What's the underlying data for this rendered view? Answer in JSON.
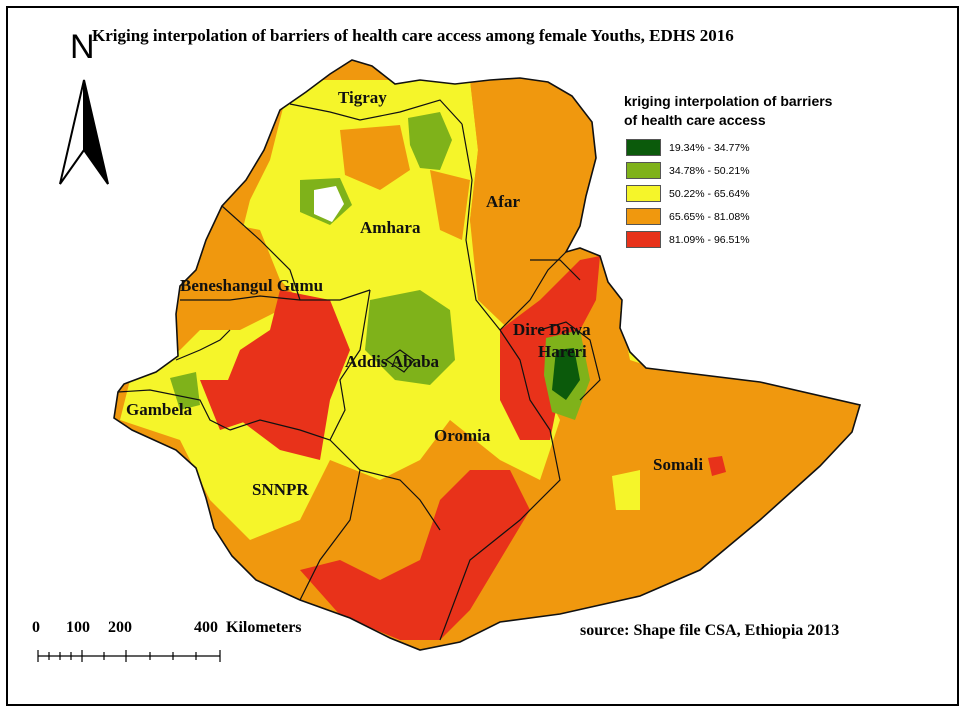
{
  "title": "Kriging interpolation of barriers of health care access among female Youths, EDHS 2016",
  "north_arrow": {
    "label": "N",
    "icon": "north-arrow-icon"
  },
  "legend": {
    "title_line1": "kriging interpolation of barriers",
    "title_line2": "of health care access",
    "classes": [
      {
        "label": "19.34% - 34.77%",
        "color": "#0b5a0b"
      },
      {
        "label": "34.78% - 50.21%",
        "color": "#7fb21a"
      },
      {
        "label": "50.22% - 65.64%",
        "color": "#f5f52a"
      },
      {
        "label": "65.65% - 81.08%",
        "color": "#f0980e"
      },
      {
        "label": "81.09% - 96.51%",
        "color": "#e8321a"
      }
    ]
  },
  "regions": {
    "tigray": "Tigray",
    "afar": "Afar",
    "amhara": "Amhara",
    "beneshangul": "Beneshangul Gumu",
    "dire_dawa": "Dire Dawa",
    "hareri": "Hareri",
    "addis": "Addis Ababa",
    "gambela": "Gambela",
    "oromia": "Oromia",
    "somali": "Somali",
    "snnpr": "SNNPR"
  },
  "scale_bar": {
    "ticks": [
      "0",
      "100",
      "200",
      "400"
    ],
    "unit": "Kilometers"
  },
  "source": "source: Shape file CSA, Ethiopia 2013"
}
